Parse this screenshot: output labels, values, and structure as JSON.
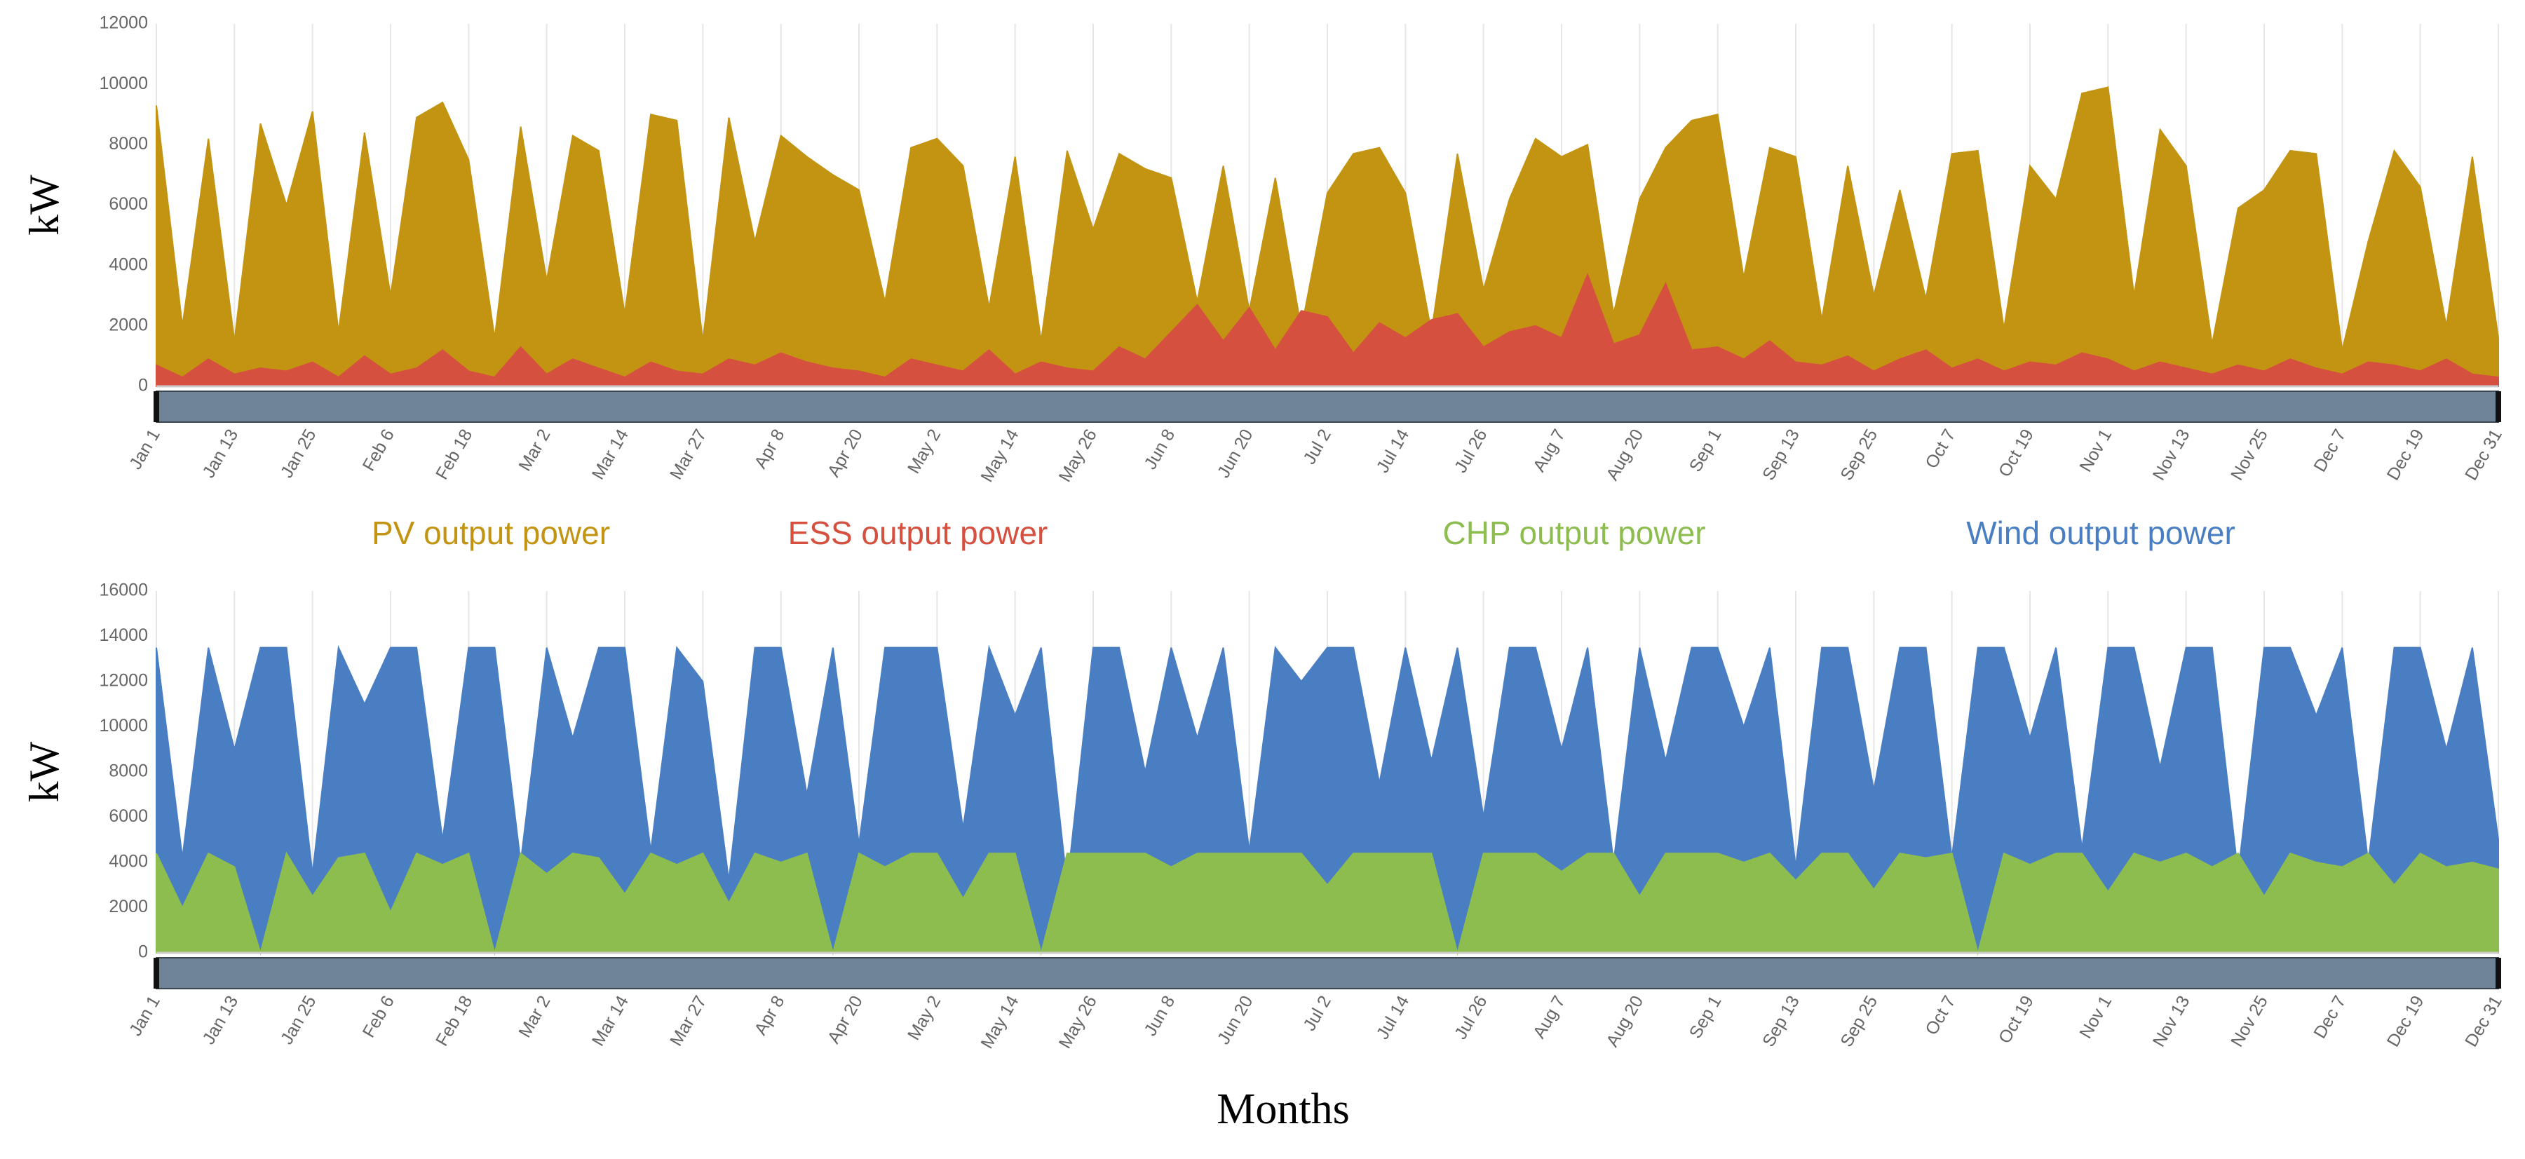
{
  "chart_data": [
    {
      "type": "area",
      "ylabel": "kW",
      "ylim": [
        0,
        12000
      ],
      "yticks": [
        0,
        2000,
        4000,
        6000,
        8000,
        10000,
        12000
      ],
      "grid": true,
      "categories": [
        "Jan 1",
        null,
        null,
        "Jan 13",
        null,
        null,
        "Jan 25",
        null,
        null,
        "Feb 6",
        null,
        null,
        "Feb 18",
        null,
        null,
        "Mar 2",
        null,
        null,
        "Mar 14",
        null,
        null,
        "Mar 27",
        null,
        null,
        "Apr 8",
        null,
        null,
        "Apr 20",
        null,
        null,
        "May 2",
        null,
        null,
        "May 14",
        null,
        null,
        "May 26",
        null,
        null,
        "Jun 8",
        null,
        null,
        "Jun 20",
        null,
        null,
        "Jul 2",
        null,
        null,
        "Jul 14",
        null,
        null,
        "Jul 26",
        null,
        null,
        "Aug 7",
        null,
        null,
        "Aug 20",
        null,
        null,
        "Sep 1",
        null,
        null,
        "Sep 13",
        null,
        null,
        "Sep 25",
        null,
        null,
        "Oct 7",
        null,
        null,
        "Oct 19",
        null,
        null,
        "Nov 1",
        null,
        null,
        "Nov 13",
        null,
        null,
        "Nov 25",
        null,
        null,
        "Dec 7",
        null,
        null,
        "Dec 19",
        null,
        null,
        "Dec 31"
      ],
      "series": [
        {
          "name": "PV output power",
          "color": "#c39412",
          "values": [
            9300,
            2000,
            8200,
            1500,
            8700,
            6000,
            9100,
            1800,
            8400,
            3000,
            8900,
            9400,
            7500,
            1600,
            8600,
            3500,
            8300,
            7800,
            2400,
            9000,
            8800,
            1500,
            8900,
            4800,
            8300,
            7600,
            7000,
            6500,
            2800,
            7900,
            8200,
            7300,
            2600,
            7600,
            1500,
            7800,
            5200,
            7700,
            7200,
            6900,
            2800,
            7300,
            2500,
            6900,
            1900,
            6400,
            7700,
            7900,
            6400,
            1800,
            7700,
            3200,
            6200,
            8200,
            7600,
            8000,
            2400,
            6200,
            7900,
            8800,
            9000,
            3600,
            7900,
            7600,
            2200,
            7300,
            3000,
            6500,
            2900,
            7700,
            7800,
            1900,
            7300,
            6200,
            9700,
            9900,
            3000,
            8500,
            7300,
            1400,
            5900,
            6500,
            7800,
            7700,
            1200,
            4800,
            7800,
            6600,
            2000,
            7600,
            1600
          ]
        },
        {
          "name": "ESS output power",
          "color": "#d6503f",
          "values": [
            700,
            300,
            900,
            400,
            600,
            500,
            800,
            300,
            1000,
            400,
            600,
            1200,
            500,
            300,
            1300,
            400,
            900,
            600,
            300,
            800,
            500,
            400,
            900,
            700,
            1100,
            800,
            600,
            500,
            300,
            900,
            700,
            500,
            1200,
            400,
            800,
            600,
            500,
            1300,
            900,
            1800,
            2700,
            1500,
            2600,
            1200,
            2500,
            2300,
            1100,
            2100,
            1600,
            2200,
            2400,
            1300,
            1800,
            2000,
            1600,
            3700,
            1400,
            1700,
            3400,
            1200,
            1300,
            900,
            1500,
            800,
            700,
            1000,
            500,
            900,
            1200,
            600,
            900,
            500,
            800,
            700,
            1100,
            900,
            500,
            800,
            600,
            400,
            700,
            500,
            900,
            600,
            400,
            800,
            700,
            500,
            900,
            400,
            300
          ]
        }
      ]
    },
    {
      "type": "area",
      "ylabel": "kW",
      "xlabel": "Months",
      "ylim": [
        0,
        16000
      ],
      "yticks": [
        0,
        2000,
        4000,
        6000,
        8000,
        10000,
        12000,
        14000,
        16000
      ],
      "grid": true,
      "categories": [
        "Jan 1",
        null,
        null,
        "Jan 13",
        null,
        null,
        "Jan 25",
        null,
        null,
        "Feb 6",
        null,
        null,
        "Feb 18",
        null,
        null,
        "Mar 2",
        null,
        null,
        "Mar 14",
        null,
        null,
        "Mar 27",
        null,
        null,
        "Apr 8",
        null,
        null,
        "Apr 20",
        null,
        null,
        "May 2",
        null,
        null,
        "May 14",
        null,
        null,
        "May 26",
        null,
        null,
        "Jun 8",
        null,
        null,
        "Jun 20",
        null,
        null,
        "Jul 2",
        null,
        null,
        "Jul 14",
        null,
        null,
        "Jul 26",
        null,
        null,
        "Aug 7",
        null,
        null,
        "Aug 20",
        null,
        null,
        "Sep 1",
        null,
        null,
        "Sep 13",
        null,
        null,
        "Sep 25",
        null,
        null,
        "Oct 7",
        null,
        null,
        "Oct 19",
        null,
        null,
        "Nov 1",
        null,
        null,
        "Nov 13",
        null,
        null,
        "Nov 25",
        null,
        null,
        "Dec 7",
        null,
        null,
        "Dec 19",
        null,
        null,
        "Dec 31"
      ],
      "series": [
        {
          "name": "Wind output power",
          "color": "#4a7ec3",
          "values": [
            13500,
            4200,
            13500,
            9000,
            13500,
            13500,
            3500,
            13500,
            11000,
            13500,
            13500,
            5000,
            13500,
            13500,
            4000,
            13500,
            9500,
            13500,
            13500,
            4500,
            13500,
            12000,
            3200,
            13500,
            13500,
            7000,
            13500,
            4800,
            13500,
            13500,
            13500,
            5500,
            13500,
            10500,
            13500,
            3000,
            13500,
            13500,
            8000,
            13500,
            9500,
            13500,
            4500,
            13500,
            12000,
            13500,
            13500,
            7500,
            13500,
            8500,
            13500,
            6000,
            13500,
            13500,
            9000,
            13500,
            4000,
            13500,
            8500,
            13500,
            13500,
            10000,
            13500,
            3800,
            13500,
            13500,
            7200,
            13500,
            13500,
            4200,
            13500,
            13500,
            9500,
            13500,
            4600,
            13500,
            13500,
            8200,
            13500,
            13500,
            3500,
            13500,
            13500,
            10500,
            13500,
            4000,
            13500,
            13500,
            9000,
            13500,
            5000
          ]
        },
        {
          "name": "CHP output power",
          "color": "#8dbd4f",
          "values": [
            4400,
            2000,
            4400,
            3800,
            0,
            4400,
            2500,
            4200,
            4400,
            1800,
            4400,
            3900,
            4400,
            0,
            4400,
            3500,
            4400,
            4200,
            2600,
            4400,
            3900,
            4400,
            2200,
            4400,
            4000,
            4400,
            0,
            4400,
            3800,
            4400,
            4400,
            2400,
            4400,
            4400,
            0,
            4400,
            4400,
            4400,
            4400,
            3800,
            4400,
            4400,
            4400,
            4400,
            4400,
            3000,
            4400,
            4400,
            4400,
            4400,
            0,
            4400,
            4400,
            4400,
            3600,
            4400,
            4400,
            2500,
            4400,
            4400,
            4400,
            4000,
            4400,
            3200,
            4400,
            4400,
            2800,
            4400,
            4200,
            4400,
            0,
            4400,
            3900,
            4400,
            4400,
            2700,
            4400,
            4000,
            4400,
            3800,
            4400,
            2500,
            4400,
            4000,
            3800,
            4400,
            3000,
            4400,
            3800,
            4000,
            3700
          ]
        }
      ]
    }
  ]
}
